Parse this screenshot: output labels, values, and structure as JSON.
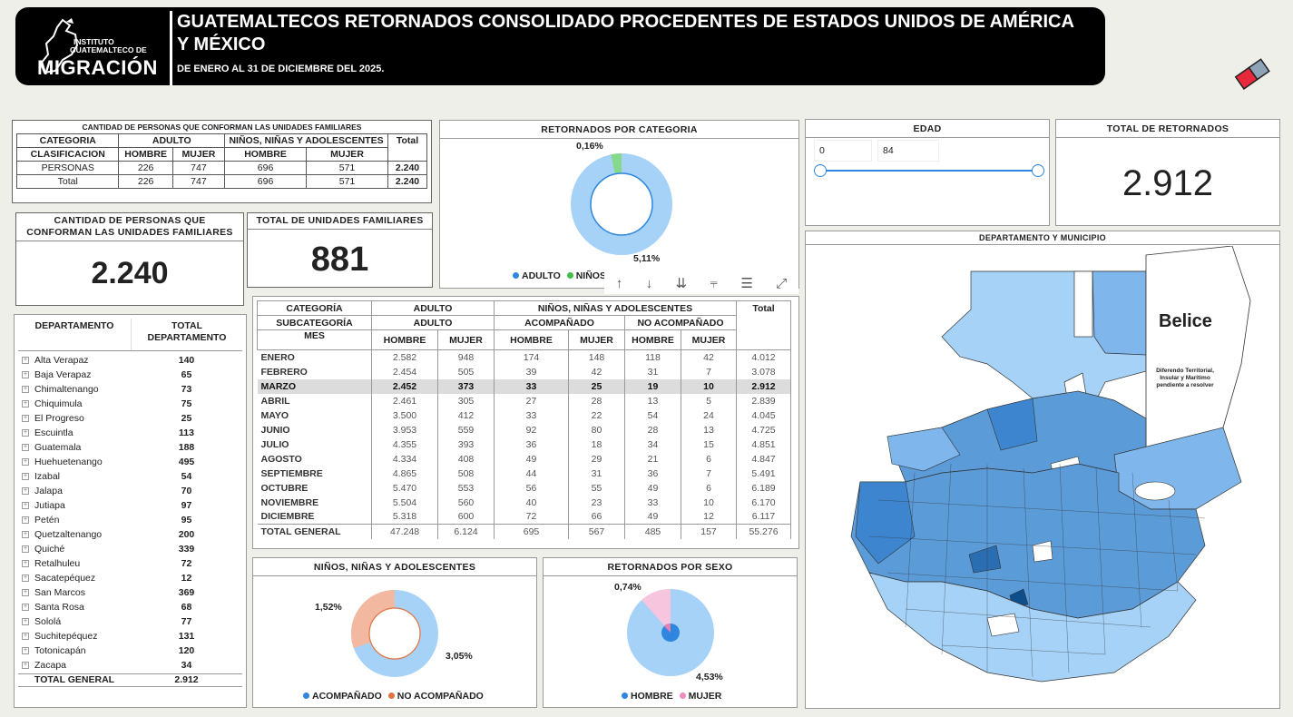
{
  "header": {
    "logo_small_1": "INSTITUTO",
    "logo_small_2": "GUATEMALTECO DE",
    "logo_big": "MIGRACIÓN",
    "title": "GUATEMALTECOS RETORNADOS CONSOLIDADO PROCEDENTES DE ESTADOS UNIDOS DE AMÉRICA Y MÉXICO",
    "subtitle": "DE ENERO AL 31 DE DICIEMBRE DEL 2025."
  },
  "family_table": {
    "title": "CANTIDAD DE PERSONAS QUE CONFORMAN LAS UNIDADES FAMILIARES",
    "h_categoria": "CATEGORIA",
    "h_adulto": "ADULTO",
    "h_nna": "NIÑOS, NIÑAS Y ADOLESCENTES",
    "h_total": "Total",
    "h_clasificacion": "CLASIFICACION",
    "h_hombre": "HOMBRE",
    "h_mujer": "MUJER",
    "rows": [
      {
        "label": "PERSONAS",
        "ah": "226",
        "am": "747",
        "nh": "696",
        "nm": "571",
        "t": "2.240"
      },
      {
        "label": "Total",
        "ah": "226",
        "am": "747",
        "nh": "696",
        "nm": "571",
        "t": "2.240"
      }
    ]
  },
  "card_personas": {
    "title": "CANTIDAD DE PERSONAS QUE CONFORMAN LAS UNIDADES FAMILIARES",
    "value": "2.240"
  },
  "card_unidades": {
    "title": "TOTAL DE UNIDADES FAMILIARES",
    "value": "881"
  },
  "categoria_chart": {
    "title": "RETORNADOS POR CATEGORIA",
    "label_small": "0,16%",
    "label_big": "5,11%",
    "legend_1": "ADULTO",
    "legend_2": "NIÑOS,",
    "legend_trail_1": "S",
    "legend_trail_2": "E"
  },
  "edad": {
    "title": "EDAD",
    "min": "0",
    "max": "84"
  },
  "total_retornados": {
    "title": "TOTAL DE RETORNADOS",
    "value": "2.912"
  },
  "dept_table": {
    "h_departamento": "DEPARTAMENTO",
    "h_total": "TOTAL DEPARTAMENTO",
    "rows": [
      {
        "name": "Alta Verapaz",
        "value": "140"
      },
      {
        "name": "Baja Verapaz",
        "value": "65"
      },
      {
        "name": "Chimaltenango",
        "value": "73"
      },
      {
        "name": "Chiquimula",
        "value": "75"
      },
      {
        "name": "El Progreso",
        "value": "25"
      },
      {
        "name": "Escuintla",
        "value": "113"
      },
      {
        "name": "Guatemala",
        "value": "188"
      },
      {
        "name": "Huehuetenango",
        "value": "495"
      },
      {
        "name": "Izabal",
        "value": "54"
      },
      {
        "name": "Jalapa",
        "value": "70"
      },
      {
        "name": "Jutiapa",
        "value": "97"
      },
      {
        "name": "Petén",
        "value": "95"
      },
      {
        "name": "Quetzaltenango",
        "value": "200"
      },
      {
        "name": "Quiché",
        "value": "339"
      },
      {
        "name": "Retalhuleu",
        "value": "72"
      },
      {
        "name": "Sacatepéquez",
        "value": "12"
      },
      {
        "name": "San Marcos",
        "value": "369"
      },
      {
        "name": "Santa Rosa",
        "value": "68"
      },
      {
        "name": "Sololá",
        "value": "77"
      },
      {
        "name": "Suchitepéquez",
        "value": "131"
      },
      {
        "name": "Totonicapán",
        "value": "120"
      },
      {
        "name": "Zacapa",
        "value": "34"
      }
    ],
    "total_label": "TOTAL GENERAL",
    "total_value": "2.912"
  },
  "mes_table": {
    "h_categoria": "CATEGORÍA",
    "h_subcategoria": "SUBCATEGORÍA",
    "h_mes": "MES",
    "h_adulto": "ADULTO",
    "h_nna": "NIÑOS, NIÑAS Y ADOLESCENTES",
    "h_total": "Total",
    "h_acompanado": "ACOMPAÑADO",
    "h_no_acompanado": "NO ACOMPAÑADO",
    "h_hombre": "HOMBRE",
    "h_mujer": "MUJER",
    "rows": [
      {
        "mes": "ENERO",
        "v": [
          "2.582",
          "948",
          "174",
          "148",
          "118",
          "42",
          "4.012"
        ]
      },
      {
        "mes": "FEBRERO",
        "v": [
          "2.454",
          "505",
          "39",
          "42",
          "31",
          "7",
          "3.078"
        ]
      },
      {
        "mes": "MARZO",
        "v": [
          "2.452",
          "373",
          "33",
          "25",
          "19",
          "10",
          "2.912"
        ]
      },
      {
        "mes": "ABRIL",
        "v": [
          "2.461",
          "305",
          "27",
          "28",
          "13",
          "5",
          "2.839"
        ]
      },
      {
        "mes": "MAYO",
        "v": [
          "3.500",
          "412",
          "33",
          "22",
          "54",
          "24",
          "4.045"
        ]
      },
      {
        "mes": "JUNIO",
        "v": [
          "3.953",
          "559",
          "92",
          "80",
          "28",
          "13",
          "4.725"
        ]
      },
      {
        "mes": "JULIO",
        "v": [
          "4.355",
          "393",
          "36",
          "18",
          "34",
          "15",
          "4.851"
        ]
      },
      {
        "mes": "AGOSTO",
        "v": [
          "4.334",
          "408",
          "49",
          "29",
          "21",
          "6",
          "4.847"
        ]
      },
      {
        "mes": "SEPTIEMBRE",
        "v": [
          "4.865",
          "508",
          "44",
          "31",
          "36",
          "7",
          "5.491"
        ]
      },
      {
        "mes": "OCTUBRE",
        "v": [
          "5.470",
          "553",
          "56",
          "55",
          "49",
          "6",
          "6.189"
        ]
      },
      {
        "mes": "NOVIEMBRE",
        "v": [
          "5.504",
          "560",
          "40",
          "23",
          "33",
          "10",
          "6.170"
        ]
      },
      {
        "mes": "DICIEMBRE",
        "v": [
          "5.318",
          "600",
          "72",
          "66",
          "49",
          "12",
          "6.117"
        ]
      },
      {
        "mes": "TOTAL GENERAL",
        "v": [
          "47.248",
          "6.124",
          "695",
          "567",
          "485",
          "157",
          "55.276"
        ]
      }
    ],
    "highlight_index": 2
  },
  "nna_chart": {
    "title": "NIÑOS, NIÑAS Y ADOLESCENTES",
    "label_left": "1,52%",
    "label_right": "3,05%",
    "legend_1": "ACOMPAÑADO",
    "legend_2": "NO ACOMPAÑADO"
  },
  "sexo_chart": {
    "title": "RETORNADOS POR SEXO",
    "label_top": "0,74%",
    "label_bottom": "4,53%",
    "legend_1": "HOMBRE",
    "legend_2": "MUJER"
  },
  "map": {
    "title": "DEPARTAMENTO Y MUNICIPIO",
    "belice": "Belice",
    "note_1": "Diferendo Territorial,",
    "note_2": "Insular y Marítimo",
    "note_3": "pendiente a resolver"
  },
  "colors": {
    "light_blue": "#9ecbf5",
    "mid_blue": "#5b9bd8",
    "dark_blue": "#0e4e8a",
    "peach": "#f2b8a0",
    "pink": "#f7c5dd",
    "green": "#86d98a"
  }
}
